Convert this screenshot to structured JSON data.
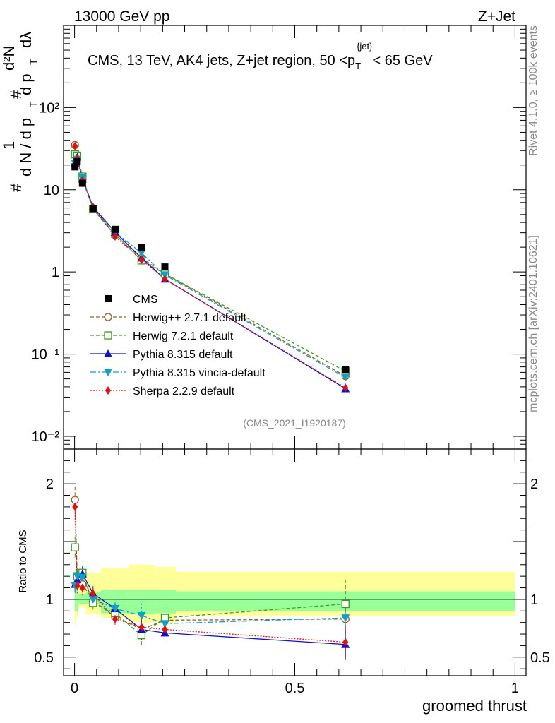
{
  "header": {
    "left": "13000 GeV pp",
    "right": "Z+Jet",
    "side_top": "Rivet 4.1.0, ≥ 100k events",
    "side_bottom": "mcplots.cern.ch [arXiv:2401.10621]",
    "watermark": "(CMS_2021_I1920187)"
  },
  "chart_data": {
    "type": "line",
    "title": "CMS, 13 TeV, AK4 jets, Z+jet region, 50 <p_T^{jet}< 65 GeV",
    "title_parts": {
      "pre": "CMS, 13 TeV, AK4 jets, Z+jet region, 50 <p",
      "sub": "T",
      "sup": "{jet}",
      "post": "< 65 GeV"
    },
    "xlabel": "groomed thrust",
    "ylabel": "1/dN/dp_T  d²N/dp_T dλ",
    "ylabel_parts": {
      "one": "1",
      "hash": "#",
      "dn": "d N / d p",
      "t": "T",
      "d2n": "d²N",
      "dpt": "d p",
      "dl": "dλ"
    },
    "ratio_ylabel": "Ratio to CMS",
    "xlim": [
      -0.025,
      1.025
    ],
    "ylim": [
      0.007,
      1000
    ],
    "ratio_ylim": [
      0.34,
      2.3
    ],
    "yscale": "log",
    "x_ticks": [
      "0",
      "0.5",
      "1"
    ],
    "x_tick_values": [
      0,
      0.5,
      1
    ],
    "y_ticks": [
      "10⁻²",
      "10⁻¹",
      "1",
      "10",
      "10²"
    ],
    "y_tick_values": [
      0.01,
      0.1,
      1,
      10,
      100
    ],
    "ratio_ticks": [
      "0.5",
      "1",
      "2"
    ],
    "ratio_tick_values": [
      0.5,
      1,
      2
    ],
    "data": {
      "name": "CMS",
      "x": [
        0.001,
        0.006,
        0.018,
        0.042,
        0.092,
        0.152,
        0.205,
        0.615
      ],
      "y": [
        19,
        22,
        12,
        5.9,
        3.3,
        2.0,
        1.15,
        0.065
      ],
      "band_edges": [
        0.0,
        0.004,
        0.009,
        0.026,
        0.06,
        0.122,
        0.182,
        0.23,
        1.0
      ],
      "band_stat": [
        [
          0.9,
          1.08
        ],
        [
          0.9,
          1.1
        ],
        [
          0.96,
          1.05
        ],
        [
          0.96,
          1.06
        ],
        [
          0.88,
          1.08
        ],
        [
          0.87,
          1.08
        ],
        [
          0.88,
          1.08
        ],
        [
          0.9,
          1.07
        ]
      ],
      "band_total": [
        [
          0.78,
          1.26
        ],
        [
          0.85,
          1.2
        ],
        [
          0.93,
          1.1
        ],
        [
          0.87,
          1.23
        ],
        [
          0.84,
          1.27
        ],
        [
          0.8,
          1.3
        ],
        [
          0.8,
          1.28
        ],
        [
          0.86,
          1.24
        ]
      ]
    },
    "series": [
      {
        "name": "Herwig++ 2.7.1 default",
        "color": "#9a5a2a",
        "dash": "5,3",
        "marker": "circle-open",
        "x": [
          0.001,
          0.006,
          0.018,
          0.042,
          0.092,
          0.152,
          0.205,
          0.615
        ],
        "y": [
          35,
          26,
          13.5,
          5.8,
          2.8,
          1.48,
          0.95,
          0.054
        ],
        "ratio": [
          1.86,
          1.2,
          1.13,
          0.99,
          0.85,
          0.74,
          0.82,
          0.83
        ]
      },
      {
        "name": "Herwig 7.2.1 default",
        "color": "#3a9a1a",
        "dash": "5,3",
        "marker": "square-open",
        "x": [
          0.001,
          0.006,
          0.018,
          0.042,
          0.092,
          0.152,
          0.205,
          0.615
        ],
        "y": [
          27,
          26,
          14.5,
          5.8,
          2.9,
          1.38,
          0.95,
          0.062
        ],
        "ratio": [
          1.45,
          1.2,
          1.23,
          0.97,
          0.88,
          0.69,
          0.84,
          0.96
        ]
      },
      {
        "name": "Pythia 8.315 default",
        "color": "#1010c8",
        "dash": "",
        "marker": "triangle-up",
        "x": [
          0.001,
          0.006,
          0.018,
          0.042,
          0.092,
          0.152,
          0.205,
          0.615
        ],
        "y": [
          21,
          25,
          13.5,
          6.2,
          3.05,
          1.48,
          0.82,
          0.038
        ],
        "ratio": [
          1.13,
          1.17,
          1.22,
          1.05,
          0.92,
          0.74,
          0.71,
          0.61
        ]
      },
      {
        "name": "Pythia 8.315 vincia-default",
        "color": "#10a0c8",
        "dash": "8,3,2,3",
        "marker": "triangle-down",
        "x": [
          0.001,
          0.006,
          0.018,
          0.042,
          0.092,
          0.152,
          0.205,
          0.615
        ],
        "y": [
          21,
          23.5,
          14,
          5.9,
          3.05,
          1.7,
          0.92,
          0.052
        ],
        "ratio": [
          1.12,
          1.2,
          1.19,
          1.0,
          0.92,
          0.86,
          0.79,
          0.84
        ]
      },
      {
        "name": "Sherpa 2.2.9 default",
        "color": "#e01010",
        "dash": "2,2",
        "marker": "diamond",
        "x": [
          0.001,
          0.006,
          0.018,
          0.042,
          0.092,
          0.152,
          0.205,
          0.615
        ],
        "y": [
          34,
          24,
          13,
          6.2,
          2.7,
          1.4,
          0.82,
          0.039
        ],
        "ratio": [
          1.8,
          1.12,
          1.1,
          1.05,
          0.83,
          0.76,
          0.74,
          0.63
        ]
      }
    ],
    "legend_position": "middle-left"
  }
}
